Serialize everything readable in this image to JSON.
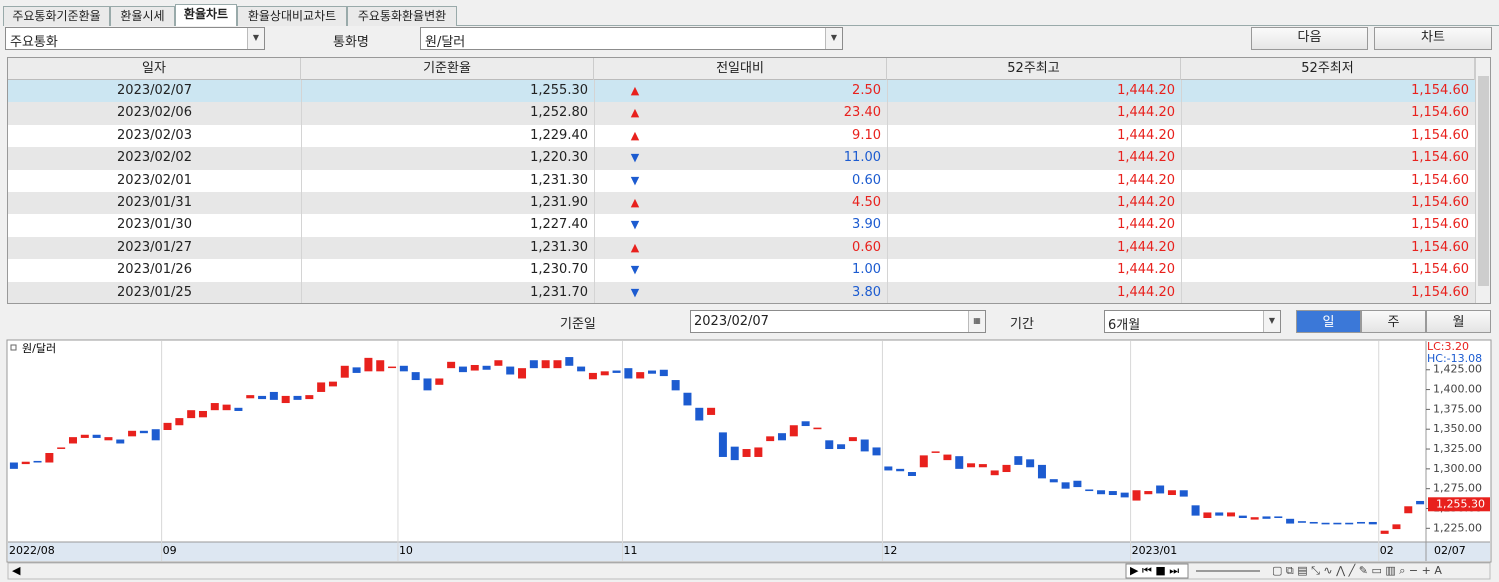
{
  "tabs": {
    "items": [
      "주요통화기준환율",
      "환율시세",
      "환율차트",
      "환율상대비교차트",
      "주요통화환율변환"
    ],
    "active": 2
  },
  "toolbar": {
    "group_select": "주요통화",
    "currency_label": "통화명",
    "currency_select": "원/달러",
    "buttons": [
      "다음",
      "차트"
    ]
  },
  "table": {
    "headers": [
      "일자",
      "기준환율",
      "전일대비",
      "52주최고",
      "52주최저"
    ],
    "directions": [
      "up",
      "up",
      "up",
      "down",
      "down",
      "up",
      "down",
      "up",
      "down",
      "down"
    ],
    "rows": [
      [
        "2023/02/07",
        "1,255.30",
        "▲",
        "2.50",
        "1,444.20",
        "1,154.60"
      ],
      [
        "2023/02/06",
        "1,252.80",
        "▲",
        "23.40",
        "1,444.20",
        "1,154.60"
      ],
      [
        "2023/02/03",
        "1,229.40",
        "▲",
        "9.10",
        "1,444.20",
        "1,154.60"
      ],
      [
        "2023/02/02",
        "1,220.30",
        "▼",
        "11.00",
        "1,444.20",
        "1,154.60"
      ],
      [
        "2023/02/01",
        "1,231.30",
        "▼",
        "0.60",
        "1,444.20",
        "1,154.60"
      ],
      [
        "2023/01/31",
        "1,231.90",
        "▲",
        "4.50",
        "1,444.20",
        "1,154.60"
      ],
      [
        "2023/01/30",
        "1,227.40",
        "▼",
        "3.90",
        "1,444.20",
        "1,154.60"
      ],
      [
        "2023/01/27",
        "1,231.30",
        "▲",
        "0.60",
        "1,444.20",
        "1,154.60"
      ],
      [
        "2023/01/26",
        "1,230.70",
        "▼",
        "1.00",
        "1,444.20",
        "1,154.60"
      ],
      [
        "2023/01/25",
        "1,231.70",
        "▼",
        "3.80",
        "1,444.20",
        "1,154.60"
      ]
    ],
    "up_color": "#e8211d",
    "down_color": "#1c5bd0"
  },
  "filters": {
    "date_label": "기준일",
    "date": "2023/02/07",
    "period_label": "기간",
    "period": "6개월",
    "units": [
      "일",
      "주",
      "월"
    ],
    "active_unit": 0
  },
  "chart_data": {
    "type": "candlestick",
    "series_name": "원/달러",
    "up_color": "#e8211d",
    "down_color": "#1c5bd0",
    "annotations": [
      {
        "text": "LC:3.20",
        "color": "#e8211d"
      },
      {
        "text": "HC:-13.08",
        "color": "#1c5bd0"
      }
    ],
    "categories": [
      "2022/08",
      null,
      null,
      null,
      null,
      null,
      null,
      null,
      null,
      null,
      null,
      null,
      null,
      "09",
      null,
      null,
      null,
      null,
      null,
      null,
      null,
      null,
      null,
      null,
      null,
      null,
      null,
      null,
      null,
      null,
      null,
      null,
      null,
      "10",
      null,
      null,
      null,
      null,
      null,
      null,
      null,
      null,
      null,
      null,
      null,
      null,
      null,
      null,
      null,
      null,
      null,
      null,
      "11",
      null,
      null,
      null,
      null,
      null,
      null,
      null,
      null,
      null,
      null,
      null,
      null,
      null,
      null,
      null,
      null,
      null,
      null,
      null,
      null,
      null,
      "12",
      null,
      null,
      null,
      null,
      null,
      null,
      null,
      null,
      null,
      null,
      null,
      null,
      null,
      null,
      null,
      null,
      null,
      null,
      null,
      null,
      "2023/01",
      null,
      null,
      null,
      null,
      null,
      null,
      null,
      null,
      null,
      null,
      null,
      null,
      null,
      null,
      null,
      null,
      null,
      null,
      null,
      null,
      "02",
      null,
      null,
      "02/07"
    ],
    "open": [
      1308,
      1306,
      1310,
      1308,
      1326,
      1332,
      1339,
      1343,
      1336,
      1337,
      1341,
      1348,
      1350,
      1349,
      1355,
      1364,
      1365,
      1374,
      1374,
      1377,
      1389,
      1392,
      1397,
      1383,
      1392,
      1388,
      1397,
      1404,
      1415,
      1428,
      1423,
      1423,
      1428,
      1430,
      1422,
      1414,
      1406,
      1427,
      1429,
      1424,
      1430,
      1430,
      1429,
      1414,
      1437,
      1427,
      1427,
      1441,
      1429,
      1413,
      1418,
      1424,
      1427,
      1414,
      1424,
      1425,
      1412,
      1396,
      1377,
      1368,
      1346,
      1328,
      1315,
      1315,
      1335,
      1345,
      1341,
      1360,
      1350,
      1336,
      1331,
      1335,
      1337,
      1327,
      1303,
      1300,
      1296,
      1302,
      1321,
      1311,
      1316,
      1302,
      1302,
      1292,
      1296,
      1316,
      1312,
      1305,
      1287,
      1283,
      1285,
      1274,
      1273,
      1272,
      1270,
      1260,
      1268,
      1279,
      1267,
      1273,
      1254,
      1238,
      1245,
      1240,
      1241,
      1236,
      1240,
      1240,
      1237,
      1234,
      1233,
      1232,
      1232,
      1232,
      1233,
      1233,
      1218,
      1224,
      1244,
      1259.5
    ],
    "close": [
      1300,
      1309,
      1308,
      1320,
      1327,
      1340,
      1343,
      1339,
      1340,
      1332,
      1348,
      1345,
      1336,
      1358,
      1364,
      1374,
      1373,
      1383,
      1381,
      1373,
      1393,
      1388,
      1387,
      1392,
      1387,
      1393,
      1409,
      1410,
      1430,
      1421,
      1440,
      1437,
      1429,
      1423,
      1412,
      1399,
      1414,
      1435,
      1422,
      1431,
      1425,
      1437,
      1419,
      1427,
      1427,
      1437,
      1437,
      1430,
      1423,
      1421,
      1423,
      1421,
      1414,
      1422,
      1420,
      1417,
      1399,
      1380,
      1361,
      1377,
      1315,
      1311,
      1325,
      1327,
      1341,
      1336,
      1355,
      1354,
      1352,
      1325,
      1325,
      1340,
      1322,
      1317,
      1298,
      1297,
      1291,
      1317,
      1322,
      1318,
      1300,
      1307,
      1306,
      1298,
      1305,
      1305,
      1302,
      1288,
      1283,
      1275,
      1277,
      1272,
      1268,
      1267,
      1264,
      1273,
      1272,
      1269,
      1273,
      1265,
      1241,
      1245,
      1241,
      1245,
      1238,
      1239,
      1237,
      1238,
      1231,
      1232,
      1231,
      1230,
      1230,
      1230,
      1231,
      1230,
      1222,
      1230,
      1252.8,
      1255.3
    ],
    "current": {
      "value": 1255.3,
      "label": "1,255.30"
    },
    "ylim": [
      1209,
      1460
    ],
    "yticks": [
      {
        "value": 1225,
        "label": "1,225.00"
      },
      {
        "value": 1250,
        "label": "1,250.00"
      },
      {
        "value": 1275,
        "label": "1,275.00"
      },
      {
        "value": 1300,
        "label": "1,300.00"
      },
      {
        "value": 1325,
        "label": "1,325.00"
      },
      {
        "value": 1350,
        "label": "1,350.00"
      },
      {
        "value": 1375,
        "label": "1,375.00"
      },
      {
        "value": 1400,
        "label": "1,400.00"
      },
      {
        "value": 1425,
        "label": "1,425.00"
      }
    ]
  }
}
